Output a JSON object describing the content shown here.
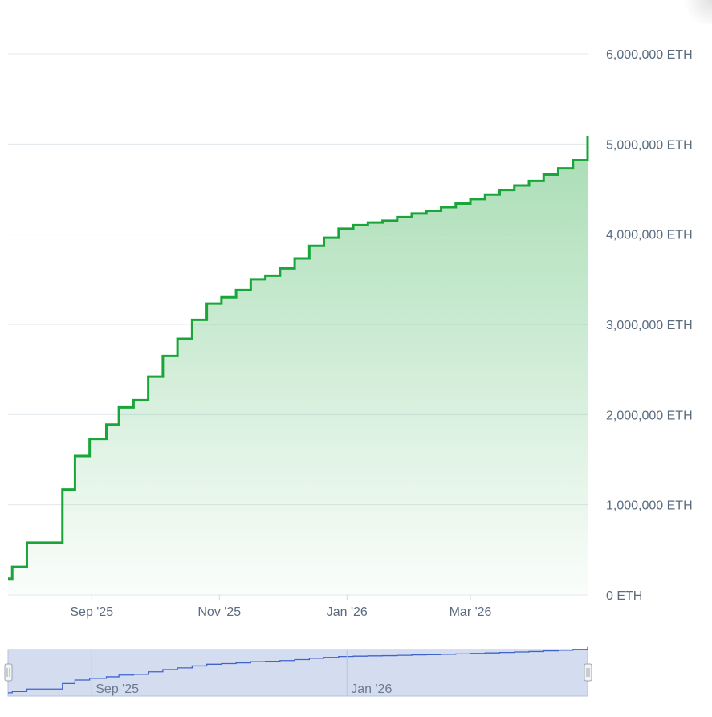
{
  "chart_data": {
    "type": "area",
    "title": "",
    "xlabel": "",
    "ylabel": "",
    "unit": "ETH",
    "y_tick_labels": [
      "6,000,000 ETH",
      "5,000,000 ETH",
      "4,000,000 ETH",
      "3,000,000 ETH",
      "2,000,000 ETH",
      "1,000,000 ETH",
      "0 ETH"
    ],
    "y_ticks": [
      6000000,
      5000000,
      4000000,
      3000000,
      2000000,
      1000000,
      0
    ],
    "ylim": [
      0,
      6000000
    ],
    "x_tick_labels": [
      "Sep '25",
      "Nov '25",
      "Jan '26",
      "Mar '26"
    ],
    "x_ticks": [
      "2025-09-01",
      "2025-11-01",
      "2026-01-01",
      "2026-03-01"
    ],
    "xlim": [
      "2025-07-23",
      "2026-04-26"
    ],
    "grid": true,
    "line_color": "#1aa53a",
    "navigator": {
      "tick_labels": [
        "Sep '25",
        "Jan '26"
      ],
      "ticks": [
        "2025-09-01",
        "2026-01-01"
      ],
      "line_color": "#3f63c9",
      "fill_color": "#d4ddf0"
    },
    "series": [
      {
        "style": "step",
        "points": [
          [
            "2025-07-23",
            180000
          ],
          [
            "2025-07-25",
            310000
          ],
          [
            "2025-08-01",
            580000
          ],
          [
            "2025-08-18",
            1170000
          ],
          [
            "2025-08-24",
            1540000
          ],
          [
            "2025-08-31",
            1730000
          ],
          [
            "2025-09-08",
            1890000
          ],
          [
            "2025-09-14",
            2080000
          ],
          [
            "2025-09-21",
            2160000
          ],
          [
            "2025-09-28",
            2420000
          ],
          [
            "2025-10-05",
            2650000
          ],
          [
            "2025-10-12",
            2840000
          ],
          [
            "2025-10-19",
            3050000
          ],
          [
            "2025-10-26",
            3230000
          ],
          [
            "2025-11-02",
            3300000
          ],
          [
            "2025-11-09",
            3380000
          ],
          [
            "2025-11-16",
            3500000
          ],
          [
            "2025-11-23",
            3540000
          ],
          [
            "2025-11-30",
            3620000
          ],
          [
            "2025-12-07",
            3730000
          ],
          [
            "2025-12-14",
            3870000
          ],
          [
            "2025-12-21",
            3960000
          ],
          [
            "2025-12-28",
            4060000
          ],
          [
            "2026-01-04",
            4100000
          ],
          [
            "2026-01-11",
            4130000
          ],
          [
            "2026-01-18",
            4150000
          ],
          [
            "2026-01-25",
            4190000
          ],
          [
            "2026-02-01",
            4230000
          ],
          [
            "2026-02-08",
            4260000
          ],
          [
            "2026-02-15",
            4300000
          ],
          [
            "2026-02-22",
            4340000
          ],
          [
            "2026-03-01",
            4390000
          ],
          [
            "2026-03-08",
            4440000
          ],
          [
            "2026-03-15",
            4490000
          ],
          [
            "2026-03-22",
            4540000
          ],
          [
            "2026-03-29",
            4590000
          ],
          [
            "2026-04-05",
            4660000
          ],
          [
            "2026-04-12",
            4730000
          ],
          [
            "2026-04-19",
            4820000
          ],
          [
            "2026-04-26",
            4970000
          ],
          [
            "2026-04-26",
            5090000
          ]
        ]
      }
    ]
  }
}
